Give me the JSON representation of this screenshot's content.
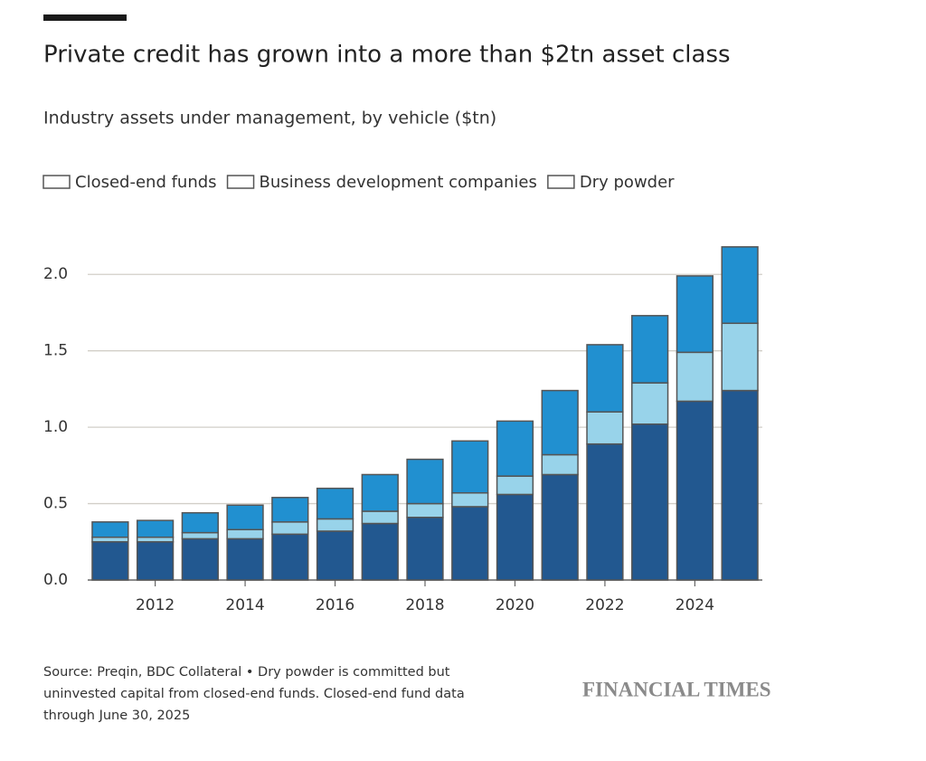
{
  "chart_data": {
    "type": "stacked_bar",
    "title": "Private credit has grown into a more than $2tn asset class",
    "subtitle": "Industry assets under management, by vehicle ($tn)",
    "x": [
      2011,
      2012,
      2013,
      2014,
      2015,
      2016,
      2017,
      2018,
      2019,
      2020,
      2021,
      2022,
      2023,
      2024,
      2025
    ],
    "xlim": [
      2010.5,
      2025.5
    ],
    "xticks": [
      2012,
      2014,
      2016,
      2018,
      2020,
      2022,
      2024
    ],
    "ylim": [
      0,
      2.25
    ],
    "yticks": [
      {
        "value": 0,
        "label": "0.0"
      },
      {
        "value": 0.5,
        "label": "0.5"
      },
      {
        "value": 1,
        "label": "1.0"
      },
      {
        "value": 1.5,
        "label": "1.5"
      },
      {
        "value": 2,
        "label": "2.0"
      }
    ],
    "grid": true,
    "series": [
      {
        "name": "Closed-end funds",
        "color": "#225890",
        "values": [
          0.25,
          0.25,
          0.27,
          0.27,
          0.3,
          0.32,
          0.37,
          0.41,
          0.48,
          0.56,
          0.69,
          0.89,
          1.02,
          1.17,
          1.24
        ]
      },
      {
        "name": "Business development companies",
        "color": "#98d3ea",
        "values": [
          0.03,
          0.03,
          0.04,
          0.06,
          0.08,
          0.08,
          0.08,
          0.09,
          0.09,
          0.12,
          0.13,
          0.21,
          0.27,
          0.32,
          0.44
        ]
      },
      {
        "name": "Dry powder",
        "color": "#2190d0",
        "values": [
          0.1,
          0.11,
          0.13,
          0.16,
          0.16,
          0.2,
          0.24,
          0.29,
          0.34,
          0.36,
          0.42,
          0.44,
          0.44,
          0.5,
          0.5
        ]
      }
    ],
    "source_lines": [
      "Source: Preqin, BDC Collateral • Dry powder is committed but",
      "uninvested capital from closed-end funds. Closed-end fund data",
      "through June 30, 2025"
    ],
    "brand": "FINANCIAL TIMES"
  }
}
